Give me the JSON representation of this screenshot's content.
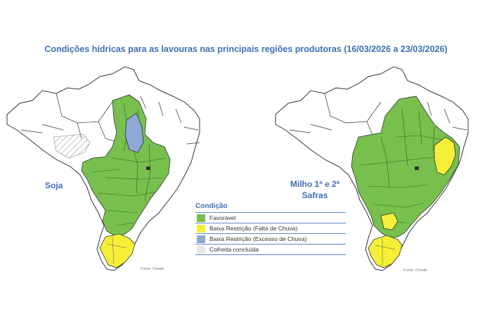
{
  "title": "Condições hídricas para as lavouras nas principais regiões produtoras (16/03/2026 a 23/03/2026)",
  "maps": {
    "left": {
      "label": "Soja",
      "source": "Fonte: Conab"
    },
    "right": {
      "label": "Milho 1ª e 2ª Safras",
      "source": "Fonte: Conab"
    }
  },
  "legend": {
    "title": "Condição",
    "items": [
      {
        "label": "Favorável",
        "color": "#77c04d"
      },
      {
        "label": "Baixa Restrição (Falta de Chuva)",
        "color": "#f5ef38"
      },
      {
        "label": "Baixa Restrição (Excesso de Chuva)",
        "color": "#8ea8d8"
      },
      {
        "label": "Colheita concluída",
        "color": "hatch"
      }
    ]
  },
  "colors": {
    "title": "#3f6fb4",
    "favoravel": "#77c04d",
    "falta": "#f5ef38",
    "excesso": "#8ea8d8",
    "border": "#333333"
  }
}
